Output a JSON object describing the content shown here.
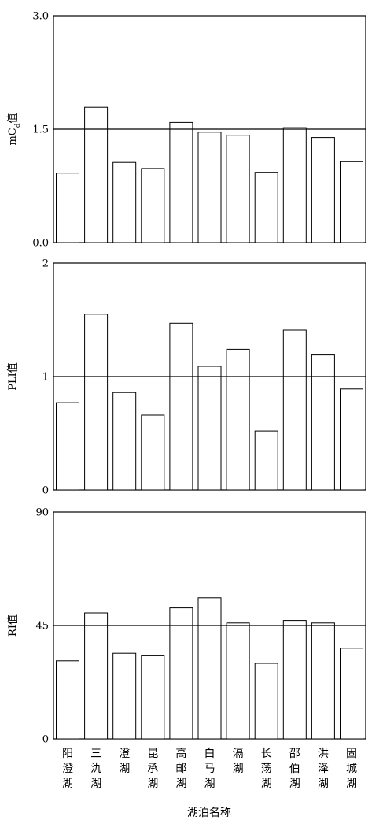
{
  "chart_data": [
    {
      "type": "bar",
      "ylabel": "mCd值",
      "ylabel_main": "mC",
      "ylabel_sub": "d",
      "ylabel_suffix": "值",
      "ylim": [
        0,
        3.0
      ],
      "yticks": [
        "0.0",
        "1.5",
        "3.0"
      ],
      "reference_line": 1.5,
      "values": [
        0.92,
        1.79,
        1.06,
        0.98,
        1.59,
        1.46,
        1.42,
        0.93,
        1.52,
        1.39,
        1.07
      ]
    },
    {
      "type": "bar",
      "ylabel": "PLI值",
      "ylim": [
        0,
        2
      ],
      "yticks": [
        "0",
        "1",
        "2"
      ],
      "reference_line": 1,
      "values": [
        0.77,
        1.55,
        0.86,
        0.66,
        1.47,
        1.09,
        1.24,
        0.52,
        1.41,
        1.19,
        0.89
      ]
    },
    {
      "type": "bar",
      "ylabel": "RI值",
      "ylim": [
        0,
        90
      ],
      "yticks": [
        "0",
        "45",
        "90"
      ],
      "reference_line": 45,
      "values": [
        31,
        50,
        34,
        33,
        52,
        56,
        46,
        30,
        47,
        46,
        36
      ]
    }
  ],
  "categories": [
    "阳澄湖",
    "三氿湖",
    "澄湖",
    "昆承湖",
    "高邮湖",
    "白马湖",
    "滆湖",
    "长荡湖",
    "邵伯湖",
    "洪泽湖",
    "固城湖"
  ],
  "category_lines": [
    [
      "阳",
      "澄",
      "湖"
    ],
    [
      "三",
      "氿",
      "湖"
    ],
    [
      "澄",
      "湖"
    ],
    [
      "昆",
      "承",
      "湖"
    ],
    [
      "高",
      "邮",
      "湖"
    ],
    [
      "白",
      "马",
      "湖"
    ],
    [
      "滆",
      "湖"
    ],
    [
      "长",
      "荡",
      "湖"
    ],
    [
      "邵",
      "伯",
      "湖"
    ],
    [
      "洪",
      "泽",
      "湖"
    ],
    [
      "固",
      "城",
      "湖"
    ]
  ],
  "xlabel": "湖泊名称"
}
